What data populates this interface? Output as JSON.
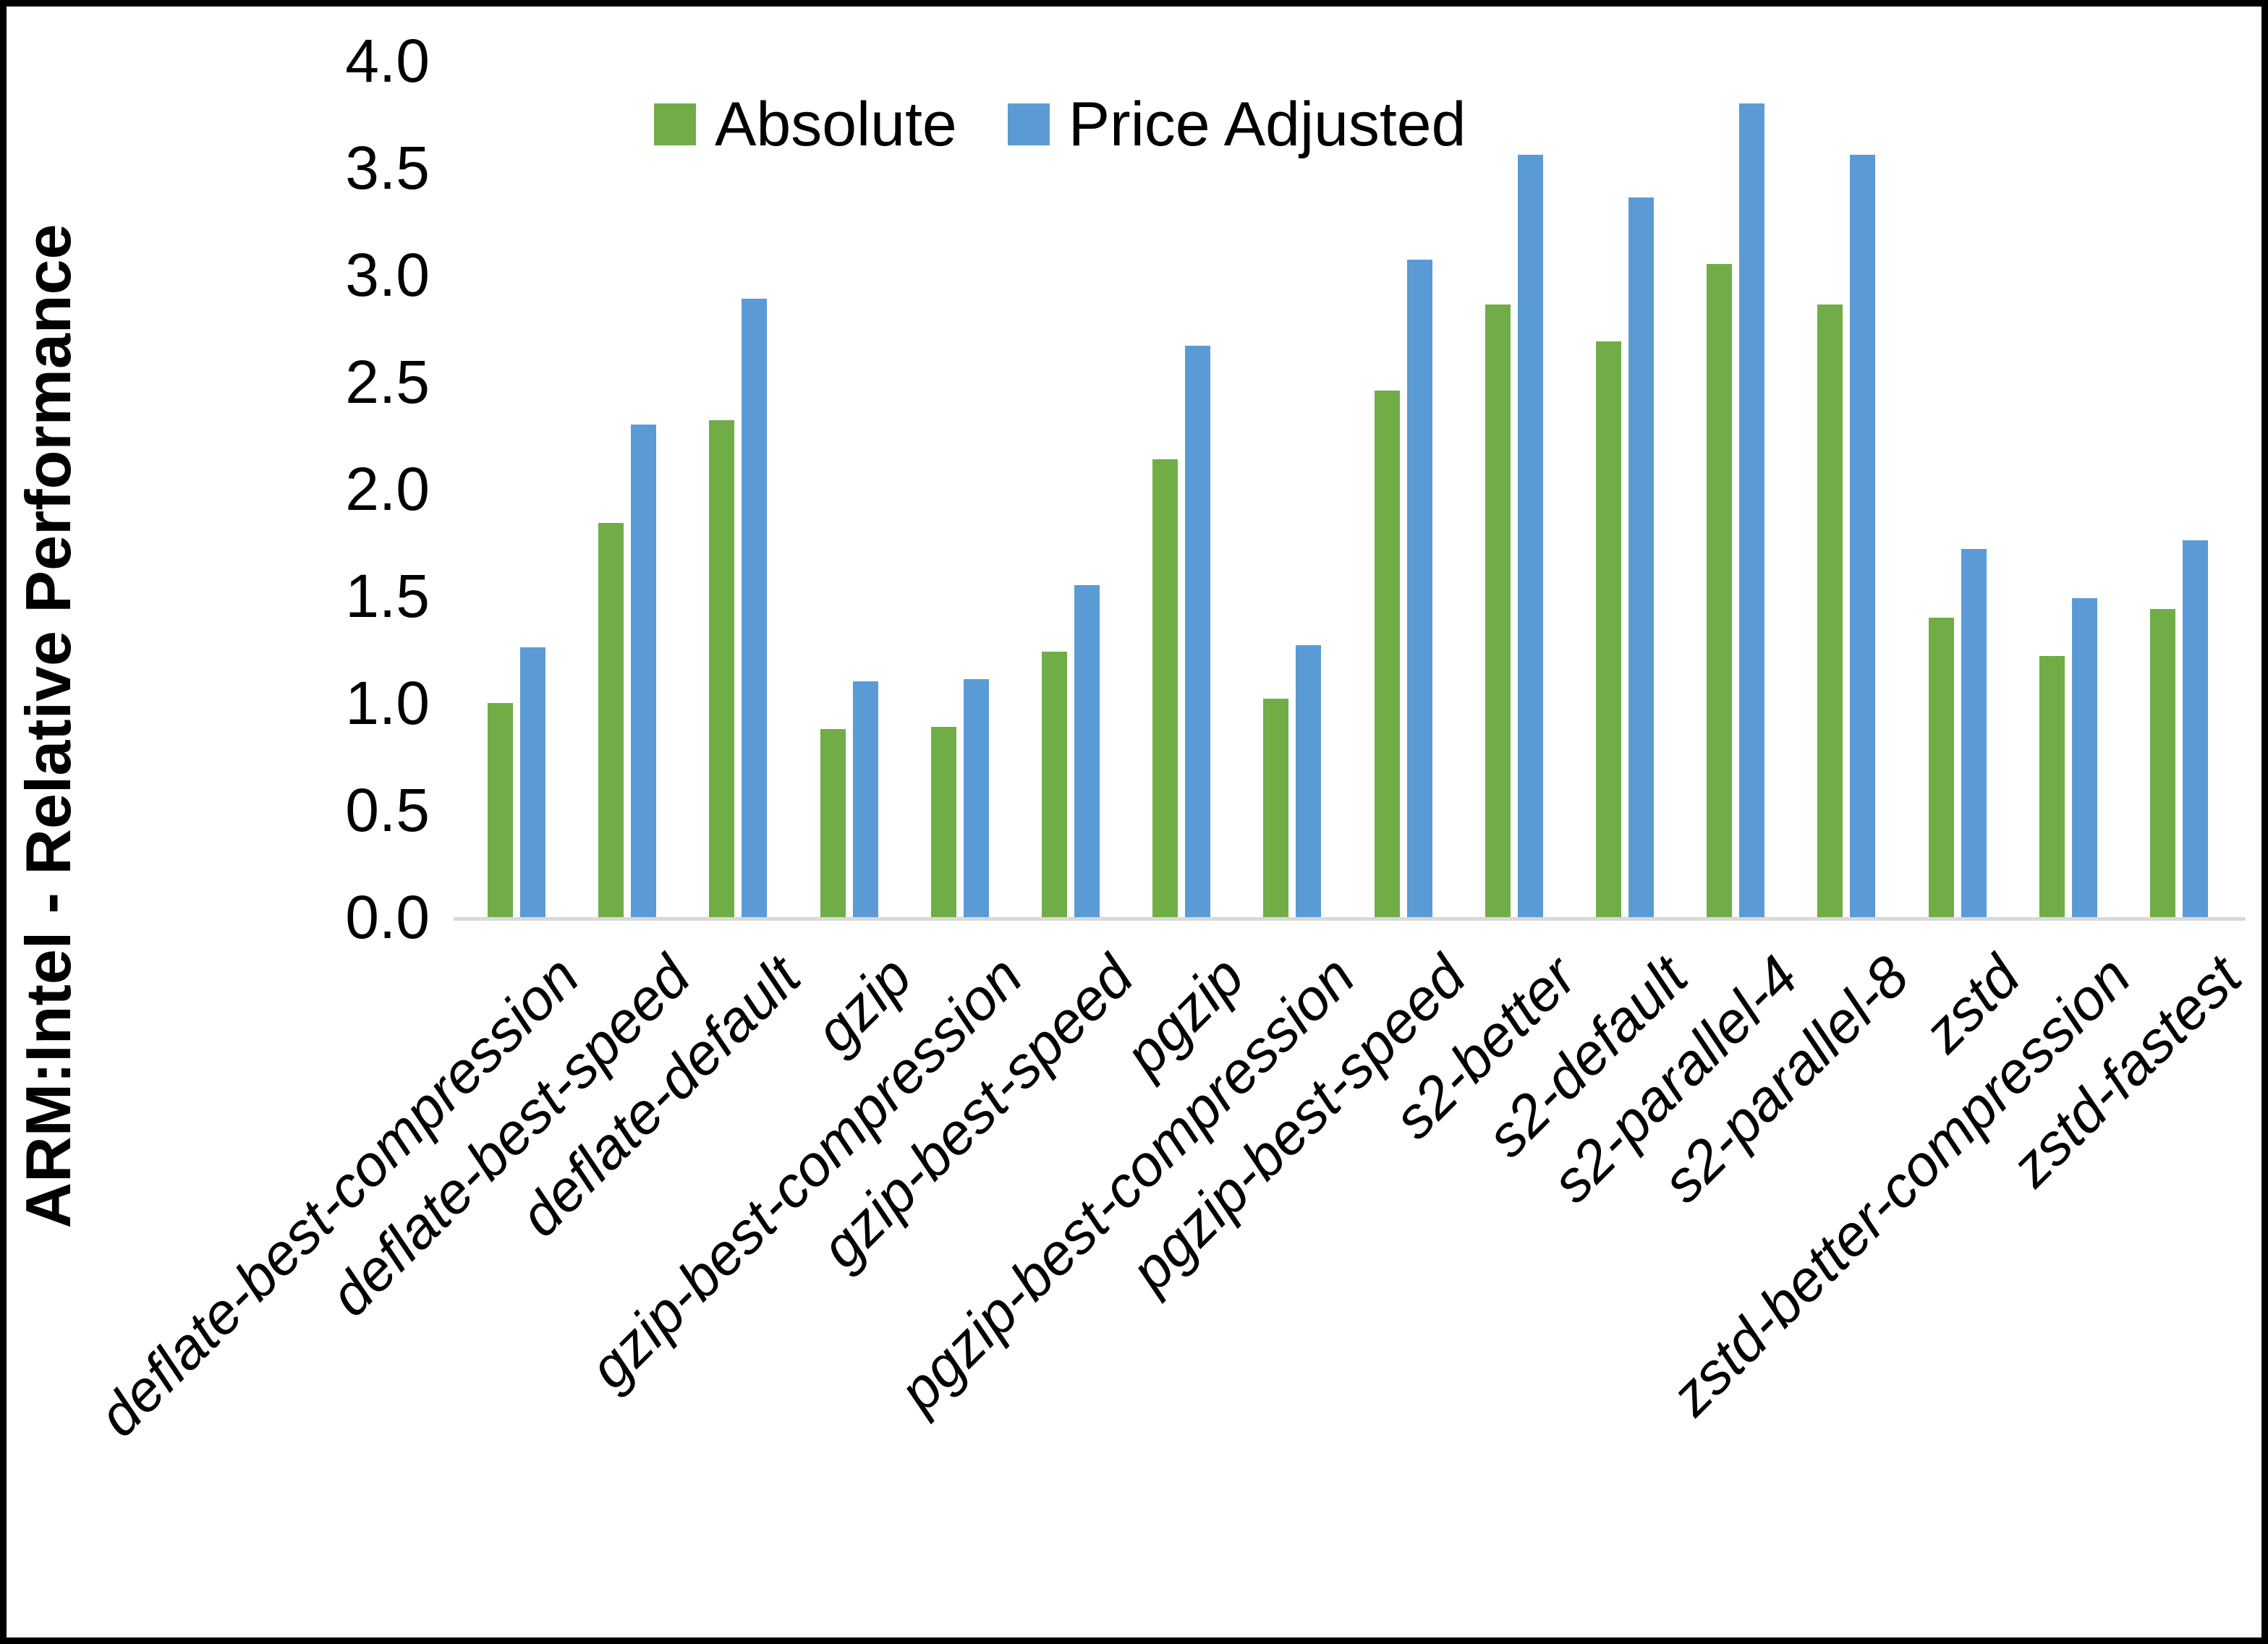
{
  "chart_data": {
    "type": "bar",
    "title": "",
    "xlabel": "",
    "ylabel": "ARM:Intel - Relative Performance",
    "ylim": [
      0.0,
      4.0
    ],
    "ytick_step": 0.5,
    "grid": false,
    "legend_position": "top-center",
    "categories": [
      "deflate-best-compression",
      "deflate-best-speed",
      "deflate-default",
      "gzip",
      "gzip-best-compression",
      "gzip-best-speed",
      "pgzip",
      "pgzip-best-compression",
      "pgzip-best-speed",
      "s2-better",
      "s2-default",
      "s2-parallel-4",
      "s2-parallel-8",
      "zstd",
      "zstd-better-compression",
      "zstd-fastest"
    ],
    "series": [
      {
        "name": "Absolute",
        "color": "#70AD47",
        "values": [
          1.0,
          1.84,
          2.32,
          0.88,
          0.89,
          1.24,
          2.14,
          1.02,
          2.46,
          2.86,
          2.69,
          3.05,
          2.86,
          1.4,
          1.22,
          1.44
        ]
      },
      {
        "name": "Price Adjusted",
        "color": "#5B9BD5",
        "values": [
          1.26,
          2.3,
          2.89,
          1.1,
          1.11,
          1.55,
          2.67,
          1.27,
          3.07,
          3.56,
          3.36,
          3.8,
          3.56,
          1.72,
          1.49,
          1.76
        ]
      }
    ]
  },
  "colors": {
    "axis_line": "#D9D9D9",
    "text": "#000000",
    "background": "#FFFFFF",
    "border": "#000000"
  }
}
